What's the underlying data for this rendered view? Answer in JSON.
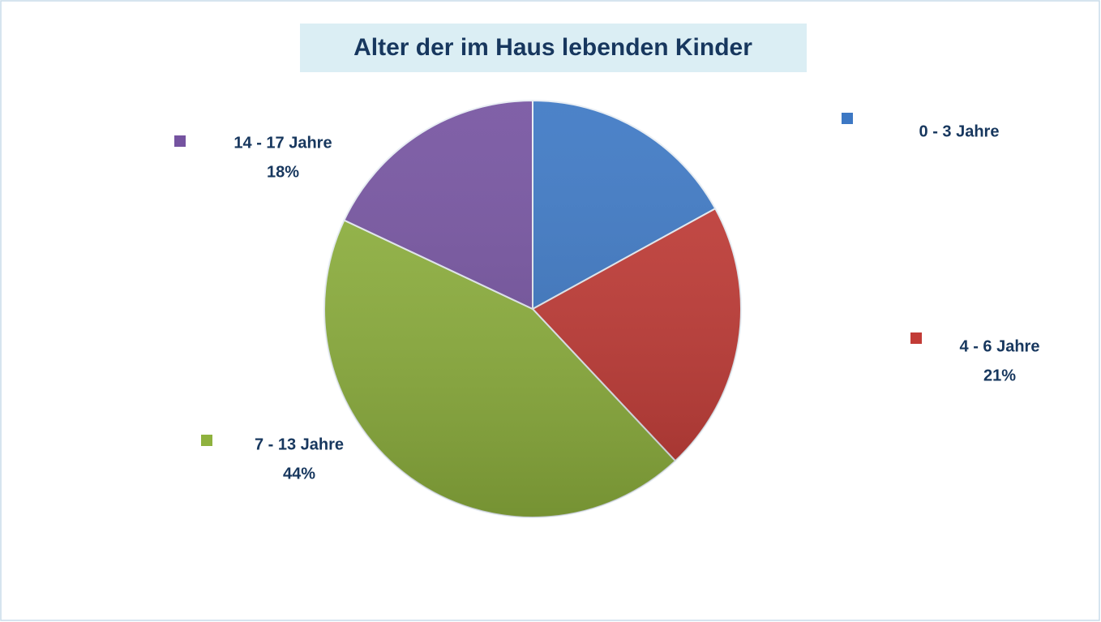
{
  "chart_data": {
    "type": "pie",
    "title": "Alter der im Haus lebenden Kinder",
    "categories": [
      "0 - 3 Jahre",
      "4 - 6 Jahre",
      "7 - 13 Jahre",
      "14 - 17 Jahre"
    ],
    "values": [
      17,
      21,
      44,
      18
    ],
    "value_labels": [
      null,
      "21%",
      "44%",
      "18%"
    ],
    "colors": [
      "#3d78c4",
      "#c23b36",
      "#8fb23e",
      "#7553a0"
    ]
  }
}
